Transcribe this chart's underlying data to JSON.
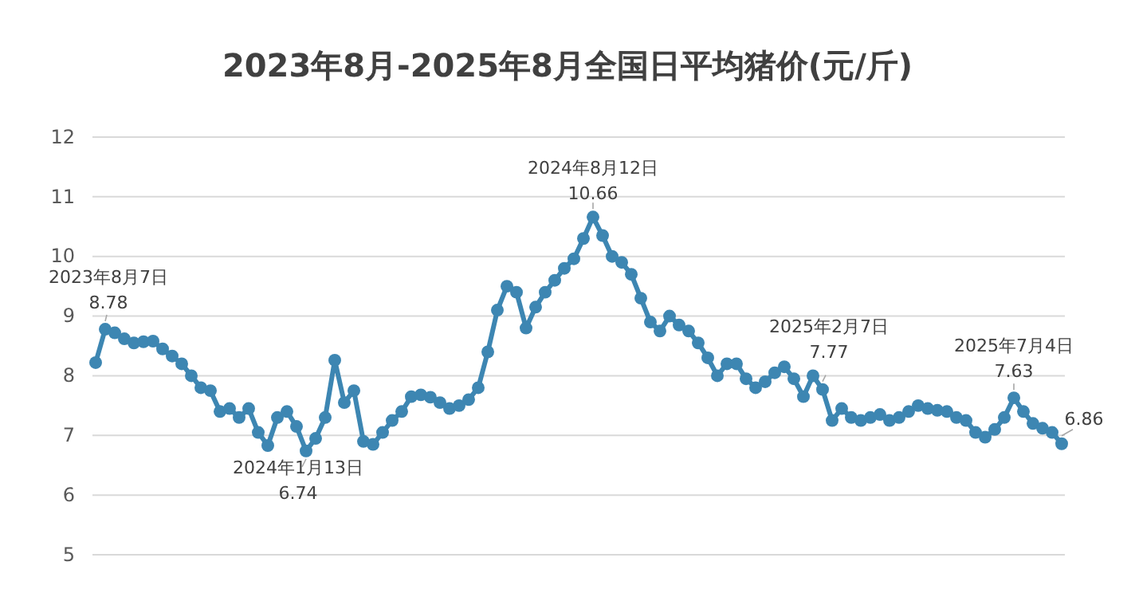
{
  "chart_data": {
    "type": "line",
    "title": "2023年8月-2025年8月全国日平均猪价(元/斤)",
    "categories": [
      null,
      null,
      null,
      null,
      null,
      null,
      null,
      null,
      null,
      null,
      null,
      null,
      null,
      null,
      null,
      null,
      null,
      null,
      null,
      null,
      null,
      null,
      null,
      null,
      null,
      null,
      null,
      null,
      null,
      null,
      null,
      null,
      null,
      null,
      null,
      null,
      null,
      null,
      null,
      null,
      null,
      null,
      null,
      null,
      null,
      null,
      null,
      null,
      null,
      null,
      null,
      null,
      null,
      null,
      null,
      null,
      null,
      null,
      null,
      null,
      null,
      null,
      null,
      null,
      null,
      null,
      null,
      null,
      null,
      null,
      null,
      null,
      null,
      null,
      null,
      null,
      null,
      null,
      null,
      null,
      null,
      null,
      null,
      null,
      null,
      null,
      null,
      null,
      null,
      null,
      null,
      null,
      null,
      null,
      null,
      null,
      null,
      null,
      null,
      null,
      null,
      null
    ],
    "series": [
      {
        "color": "#3d86b2",
        "values": [
          8.22,
          8.78,
          8.72,
          8.62,
          8.55,
          8.57,
          8.58,
          8.45,
          8.33,
          8.2,
          8.0,
          7.8,
          7.75,
          7.4,
          7.45,
          7.3,
          7.45,
          7.05,
          6.83,
          7.3,
          7.4,
          7.15,
          6.74,
          6.95,
          7.3,
          8.26,
          7.55,
          7.75,
          6.9,
          6.85,
          7.05,
          7.25,
          7.4,
          7.65,
          7.68,
          7.64,
          7.55,
          7.45,
          7.5,
          7.6,
          7.8,
          8.4,
          9.1,
          9.5,
          9.4,
          8.8,
          9.15,
          9.4,
          9.6,
          9.8,
          9.96,
          10.3,
          10.66,
          10.35,
          10.0,
          9.9,
          9.7,
          9.3,
          8.9,
          8.75,
          9.0,
          8.85,
          8.75,
          8.55,
          8.3,
          8.0,
          8.2,
          8.2,
          7.95,
          7.8,
          7.9,
          8.05,
          8.15,
          7.95,
          7.65,
          8.0,
          7.77,
          7.25,
          7.45,
          7.3,
          7.25,
          7.3,
          7.35,
          7.25,
          7.3,
          7.4,
          7.5,
          7.45,
          7.42,
          7.4,
          7.3,
          7.25,
          7.05,
          6.97,
          7.1,
          7.3,
          7.63,
          7.4,
          7.2,
          7.12,
          7.05,
          6.86
        ]
      }
    ],
    "ylim": [
      5,
      12
    ],
    "yticks": [
      5,
      6,
      7,
      8,
      9,
      10,
      11,
      12
    ],
    "tick_labels": "y",
    "grid": "y",
    "marker": "circle",
    "annotations": [
      {
        "text": "2023年8月7日\n8.78",
        "y": 8.78
      },
      {
        "text": "2024年1月13日\n6.74",
        "y": 6.74
      },
      {
        "text": "2024年8月12日\n10.66",
        "y": 10.66
      },
      {
        "text": "2025年2月7日\n7.77",
        "y": 7.77
      },
      {
        "text": "2025年7月4日\n7.63",
        "y": 7.63
      },
      "6.86"
    ]
  }
}
